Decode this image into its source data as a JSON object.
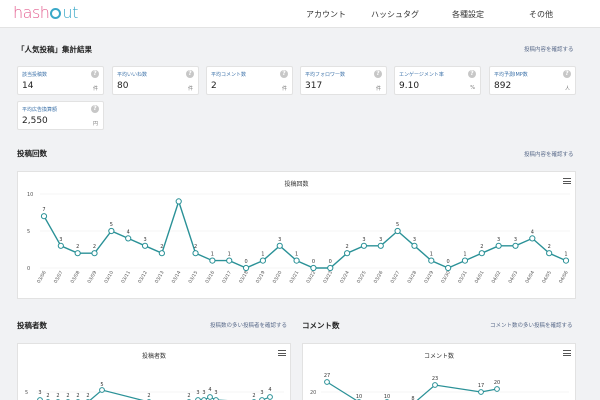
{
  "header": {
    "logo": {
      "left": "hash",
      "right": "ut"
    },
    "nav": [
      {
        "label": "アカウント"
      },
      {
        "label": "ハッシュタグ"
      },
      {
        "label": "各種設定"
      },
      {
        "label": "その他"
      }
    ]
  },
  "summary": {
    "title": "「人気投稿」集計結果",
    "link": "投稿内容を確認する",
    "cards": [
      {
        "label": "該当投稿数",
        "value": "14",
        "unit": "件"
      },
      {
        "label": "平均いいね数",
        "value": "80",
        "unit": "件"
      },
      {
        "label": "平均コメント数",
        "value": "2",
        "unit": "件"
      },
      {
        "label": "平均フォロワー数",
        "value": "317",
        "unit": "件"
      },
      {
        "label": "エンゲージメント率",
        "value": "9.10",
        "unit": "%"
      },
      {
        "label": "平均予測IMP数",
        "value": "892",
        "unit": "人"
      },
      {
        "label": "平均広告換算額",
        "value": "2,550",
        "unit": "円"
      }
    ]
  },
  "posts_section": {
    "title": "投稿回数",
    "link": "投稿内容を確認する"
  },
  "posters_section": {
    "title": "投稿者数",
    "link": "投稿数の多い投稿者を確認する"
  },
  "comments_section": {
    "title": "コメント数",
    "link": "コメント数の多い投稿を確認する"
  },
  "chart_data": [
    {
      "type": "line",
      "title": "投稿回数",
      "categories": [
        "03/06",
        "03/07",
        "03/08",
        "03/09",
        "03/10",
        "03/11",
        "03/12",
        "03/13",
        "03/14",
        "03/15",
        "03/16",
        "03/17",
        "03/18",
        "03/19",
        "03/20",
        "03/21",
        "03/22",
        "03/23",
        "03/24",
        "03/25",
        "03/26",
        "03/27",
        "03/28",
        "03/29",
        "03/30",
        "03/31",
        "04/01",
        "04/02",
        "04/03",
        "04/04",
        "04/05",
        "04/06"
      ],
      "values": [
        7,
        3,
        2,
        2,
        5,
        4,
        3,
        2,
        9,
        2,
        1,
        1,
        0,
        1,
        3,
        1,
        0,
        0,
        2,
        3,
        3,
        5,
        3,
        1,
        0,
        1,
        2,
        3,
        3,
        4,
        2,
        1
      ],
      "value_labels": [
        "7",
        "3",
        "2",
        "2",
        "5",
        "4",
        "3",
        "2",
        "",
        "2",
        "1",
        "1",
        "0",
        "1",
        "3",
        "1",
        "0",
        "0",
        "2",
        "3",
        "3",
        "5",
        "3",
        "1",
        "0",
        "1",
        "2",
        "3",
        "3",
        "4",
        "2",
        "1"
      ],
      "yticks": [
        "0",
        "5",
        "10"
      ],
      "ylim": [
        0,
        10
      ],
      "color": "#2a9197"
    },
    {
      "type": "line",
      "title": "投稿者数",
      "yticks": [
        "5"
      ],
      "visible_labels": [
        "3",
        "2",
        "2",
        "2",
        "2",
        "2",
        "5",
        "2",
        "2",
        "3",
        "3",
        "4",
        "3",
        "2",
        "3",
        "4"
      ]
    },
    {
      "type": "line",
      "title": "コメント数",
      "yticks": [
        "20"
      ],
      "visible_labels": [
        "27",
        "10",
        "10",
        "8",
        "23",
        "17",
        "20"
      ]
    }
  ]
}
